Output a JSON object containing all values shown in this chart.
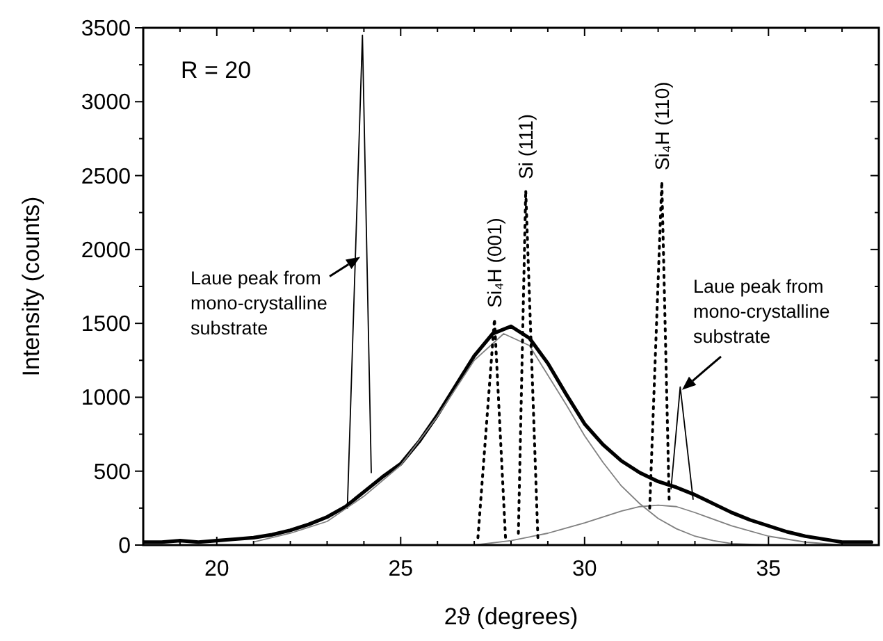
{
  "chart_data": {
    "type": "line",
    "xlabel": "2ϑ (degrees)",
    "ylabel": "Intensity (counts)",
    "xlim": [
      18,
      38
    ],
    "ylim": [
      0,
      3500
    ],
    "xticks": [
      {
        "value": 18,
        "label": null
      },
      {
        "value": 19,
        "label": null
      },
      20,
      {
        "value": 21,
        "label": null
      },
      {
        "value": 22,
        "label": null
      },
      {
        "value": 23,
        "label": null
      },
      {
        "value": 24,
        "label": null
      },
      25,
      {
        "value": 26,
        "label": null
      },
      {
        "value": 27,
        "label": null
      },
      {
        "value": 28,
        "label": null
      },
      {
        "value": 29,
        "label": null
      },
      30,
      {
        "value": 31,
        "label": null
      },
      {
        "value": 32,
        "label": null
      },
      {
        "value": 33,
        "label": null
      },
      {
        "value": 34,
        "label": null
      },
      35,
      {
        "value": 36,
        "label": null
      },
      {
        "value": 37,
        "label": null
      }
    ],
    "yticks": [
      0,
      {
        "value": 250,
        "label": null
      },
      500,
      {
        "value": 750,
        "label": null
      },
      1000,
      {
        "value": 1250,
        "label": null
      },
      1500,
      {
        "value": 1750,
        "label": null
      },
      2000,
      {
        "value": 2250,
        "label": null
      },
      2500,
      {
        "value": 2750,
        "label": null
      },
      3000,
      {
        "value": 3250,
        "label": null
      },
      3500
    ],
    "grid": false,
    "marker": "none",
    "series": [
      {
        "color": "#000000",
        "x": [
          18,
          18.5,
          19,
          19.5,
          20,
          20.5,
          21,
          21.5,
          22,
          22.5,
          23,
          23.5,
          24,
          24.5,
          25,
          25.5,
          26,
          26.5,
          27,
          27.5,
          28,
          28.5,
          29,
          29.5,
          30,
          30.5,
          31,
          31.5,
          32,
          32.5,
          33,
          33.5,
          34,
          34.5,
          35,
          35.5,
          36,
          36.5,
          37,
          37.8
        ],
        "values": [
          20,
          20,
          30,
          20,
          30,
          40,
          50,
          70,
          100,
          140,
          190,
          260,
          360,
          460,
          550,
          700,
          880,
          1080,
          1280,
          1430,
          1480,
          1400,
          1230,
          1020,
          820,
          680,
          570,
          490,
          430,
          390,
          340,
          280,
          220,
          170,
          130,
          90,
          60,
          40,
          20,
          20
        ]
      },
      {
        "color": "#000000",
        "x": [
          23.55,
          23.96,
          24.2,
          24.35,
          32.35,
          32.6,
          32.95
        ],
        "values": [
          250,
          3450,
          490,
          null,
          380,
          1070,
          310
        ]
      },
      {
        "color": "#808080",
        "x": [
          21,
          22,
          23,
          24,
          25,
          26,
          27,
          27.8,
          28.5,
          29,
          29.5,
          30,
          30.5,
          31,
          31.5,
          32,
          32.5,
          33,
          33.5,
          34,
          35
        ],
        "values": [
          20,
          80,
          160,
          330,
          540,
          870,
          1250,
          1430,
          1350,
          1150,
          950,
          740,
          560,
          400,
          280,
          180,
          110,
          60,
          30,
          10,
          0
        ]
      },
      {
        "color": "#808080",
        "x": [
          27,
          28,
          29,
          30,
          31,
          31.5,
          32,
          32.5,
          33,
          34,
          35,
          36,
          37
        ],
        "values": [
          0,
          30,
          80,
          150,
          230,
          260,
          270,
          260,
          220,
          130,
          60,
          20,
          0
        ]
      },
      {
        "name": "Si₄H (001)",
        "color": "#000000",
        "line_style": "dotted",
        "x": [
          27.1,
          27.55,
          27.85
        ],
        "values": [
          50,
          1530,
          50
        ]
      },
      {
        "name": "Si (111)",
        "color": "#000000",
        "line_style": "dotted",
        "x": [
          28.2,
          28.4,
          28.73
        ],
        "values": [
          80,
          2400,
          50
        ]
      },
      {
        "name": "Si₄H (110)",
        "color": "#000000",
        "line_style": "dotted",
        "x": [
          31.77,
          32.1,
          32.3
        ],
        "values": [
          250,
          2460,
          300
        ]
      }
    ],
    "annotations": [
      "R = 20",
      {
        "text": "Laue peak from\nmono-crystalline\nsubstrate",
        "x": 23.9,
        "y": 1950
      },
      {
        "text": "Laue peak from\nmono-crystalline\nsubstrate",
        "x": 32.65,
        "y": 1050
      }
    ]
  }
}
